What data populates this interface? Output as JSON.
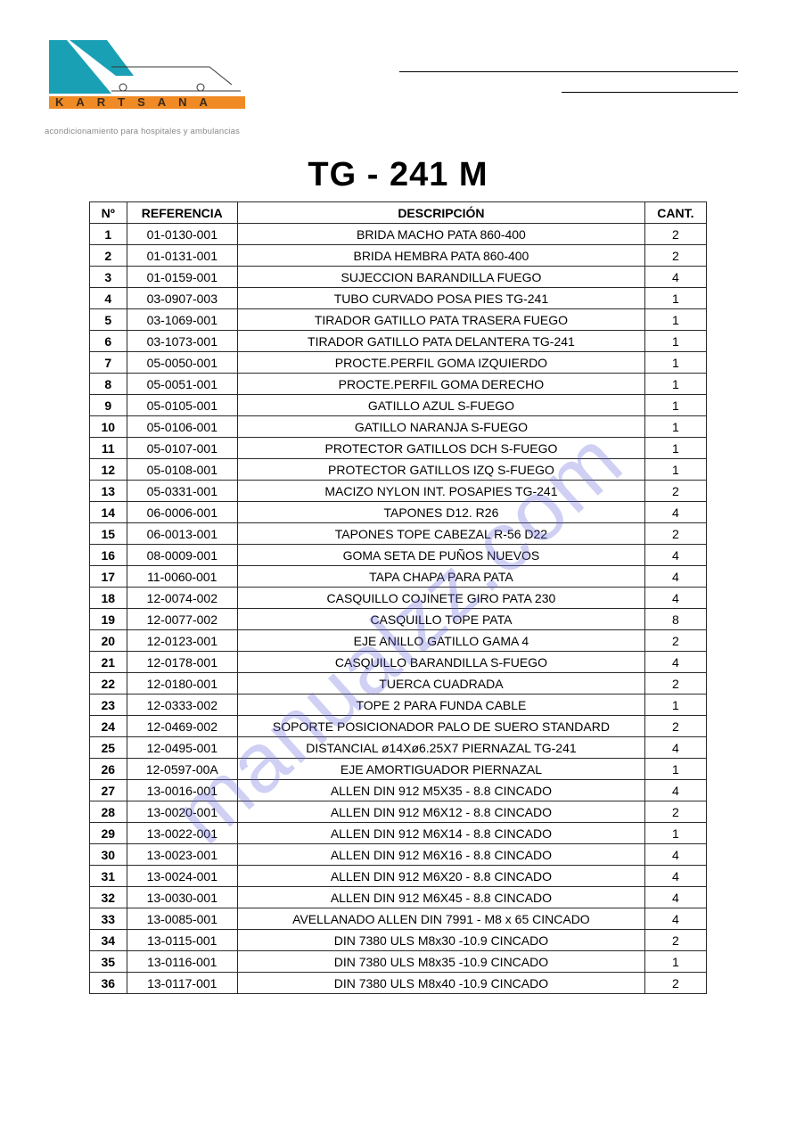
{
  "logo": {
    "brand_name": "KARTSANA",
    "tagline": "acondicionamiento para hospitales y ambulancias",
    "colors": {
      "orange": "#f08a24",
      "teal": "#1aa0b5",
      "dark": "#333333"
    }
  },
  "watermark_text": "manualzz.com",
  "document_title": "TG - 241 M",
  "table": {
    "columns": [
      "Nº",
      "REFERENCIA",
      "DESCRIPCIÓN",
      "CANT."
    ],
    "rows": [
      [
        "1",
        "01-0130-001",
        "BRIDA MACHO PATA 860-400",
        "2"
      ],
      [
        "2",
        "01-0131-001",
        "BRIDA HEMBRA PATA 860-400",
        "2"
      ],
      [
        "3",
        "01-0159-001",
        "SUJECCION BARANDILLA FUEGO",
        "4"
      ],
      [
        "4",
        "03-0907-003",
        "TUBO CURVADO POSA PIES TG-241",
        "1"
      ],
      [
        "5",
        "03-1069-001",
        "TIRADOR GATILLO PATA TRASERA FUEGO",
        "1"
      ],
      [
        "6",
        "03-1073-001",
        "TIRADOR GATILLO PATA DELANTERA TG-241",
        "1"
      ],
      [
        "7",
        "05-0050-001",
        "PROCTE.PERFIL GOMA IZQUIERDO",
        "1"
      ],
      [
        "8",
        "05-0051-001",
        "PROCTE.PERFIL GOMA DERECHO",
        "1"
      ],
      [
        "9",
        "05-0105-001",
        "GATILLO AZUL S-FUEGO",
        "1"
      ],
      [
        "10",
        "05-0106-001",
        "GATILLO NARANJA S-FUEGO",
        "1"
      ],
      [
        "11",
        "05-0107-001",
        "PROTECTOR GATILLOS DCH S-FUEGO",
        "1"
      ],
      [
        "12",
        "05-0108-001",
        "PROTECTOR GATILLOS IZQ S-FUEGO",
        "1"
      ],
      [
        "13",
        "05-0331-001",
        "MACIZO NYLON INT. POSAPIES TG-241",
        "2"
      ],
      [
        "14",
        "06-0006-001",
        "TAPONES D12. R26",
        "4"
      ],
      [
        "15",
        "06-0013-001",
        "TAPONES TOPE CABEZAL R-56 D22",
        "2"
      ],
      [
        "16",
        "08-0009-001",
        "GOMA SETA DE PUÑOS NUEVOS",
        "4"
      ],
      [
        "17",
        "11-0060-001",
        "TAPA CHAPA PARA PATA",
        "4"
      ],
      [
        "18",
        "12-0074-002",
        "CASQUILLO COJINETE GIRO PATA 230",
        "4"
      ],
      [
        "19",
        "12-0077-002",
        "CASQUILLO TOPE PATA",
        "8"
      ],
      [
        "20",
        "12-0123-001",
        "EJE ANILLO GATILLO GAMA 4",
        "2"
      ],
      [
        "21",
        "12-0178-001",
        "CASQUILLO BARANDILLA S-FUEGO",
        "4"
      ],
      [
        "22",
        "12-0180-001",
        "TUERCA CUADRADA",
        "2"
      ],
      [
        "23",
        "12-0333-002",
        "TOPE 2 PARA FUNDA CABLE",
        "1"
      ],
      [
        "24",
        "12-0469-002",
        "SOPORTE POSICIONADOR PALO DE SUERO STANDARD",
        "2"
      ],
      [
        "25",
        "12-0495-001",
        "DISTANCIAL ø14Xø6.25X7 PIERNAZAL TG-241",
        "4"
      ],
      [
        "26",
        "12-0597-00A",
        "EJE AMORTIGUADOR PIERNAZAL",
        "1"
      ],
      [
        "27",
        "13-0016-001",
        "ALLEN DIN 912 M5X35 - 8.8 CINCADO",
        "4"
      ],
      [
        "28",
        "13-0020-001",
        "ALLEN DIN 912 M6X12 - 8.8 CINCADO",
        "2"
      ],
      [
        "29",
        "13-0022-001",
        "ALLEN DIN 912 M6X14 - 8.8 CINCADO",
        "1"
      ],
      [
        "30",
        "13-0023-001",
        "ALLEN DIN 912 M6X16 - 8.8 CINCADO",
        "4"
      ],
      [
        "31",
        "13-0024-001",
        "ALLEN DIN 912 M6X20 - 8.8 CINCADO",
        "4"
      ],
      [
        "32",
        "13-0030-001",
        "ALLEN DIN 912 M6X45 - 8.8 CINCADO",
        "4"
      ],
      [
        "33",
        "13-0085-001",
        "AVELLANADO ALLEN DIN 7991 - M8 x 65 CINCADO",
        "4"
      ],
      [
        "34",
        "13-0115-001",
        "DIN 7380 ULS M8x30 -10.9 CINCADO",
        "2"
      ],
      [
        "35",
        "13-0116-001",
        "DIN 7380 ULS M8x35 -10.9 CINCADO",
        "1"
      ],
      [
        "36",
        "13-0117-001",
        "DIN 7380 ULS M8x40 -10.9 CINCADO",
        "2"
      ]
    ]
  }
}
